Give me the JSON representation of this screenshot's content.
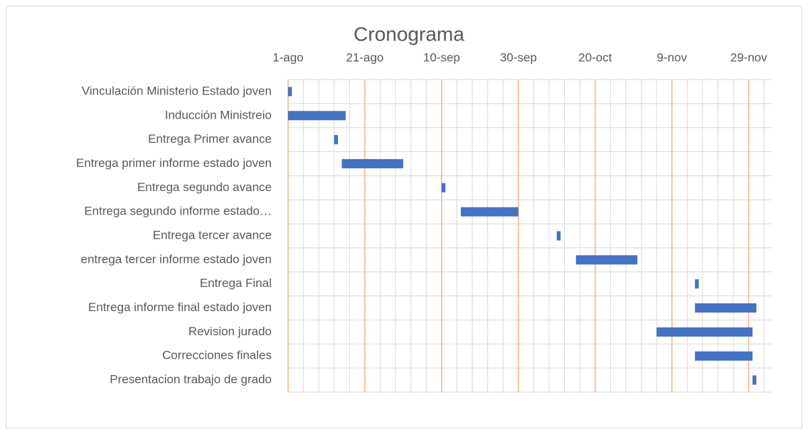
{
  "chart_data": {
    "type": "gantt",
    "title": "Cronograma",
    "tasks": [
      "Vinculación Ministerio Estado joven",
      "Inducción Ministreio",
      "Entrega Primer avance",
      "Entrega primer informe estado joven",
      "Entrega segundo avance",
      "Entrega segundo informe estado…",
      "Entrega tercer avance",
      "entrega tercer informe estado joven",
      "Entrega Final",
      "Entrega informe final estado joven",
      "Revision jurado",
      "Correcciones finales",
      "Presentacion trabajo de grado"
    ],
    "start": [
      0,
      0,
      12,
      14,
      40,
      45,
      70,
      75,
      106,
      106,
      96,
      106,
      121
    ],
    "duration": [
      1,
      15,
      1,
      16,
      1,
      15,
      1,
      16,
      1,
      16,
      25,
      15,
      1
    ],
    "color": "#4472c4",
    "xlim": [
      0,
      126
    ],
    "xticks": [
      {
        "value": 0,
        "label": "1-ago"
      },
      {
        "value": 20,
        "label": "21-ago"
      },
      {
        "value": 40,
        "label": "10-sep"
      },
      {
        "value": 60,
        "label": "30-sep"
      },
      {
        "value": 80,
        "label": "20-oct"
      },
      {
        "value": 100,
        "label": "9-nov"
      },
      {
        "value": 120,
        "label": "29-nov"
      }
    ],
    "minor_xticks": [
      4,
      8,
      12,
      16,
      24,
      28,
      32,
      36,
      44,
      48,
      52,
      56,
      64,
      68,
      72,
      76,
      84,
      88,
      92,
      96,
      104,
      108,
      112,
      116,
      124
    ],
    "grid_color": "#f4b183",
    "minor_grid_color": "#d9d9d9"
  }
}
